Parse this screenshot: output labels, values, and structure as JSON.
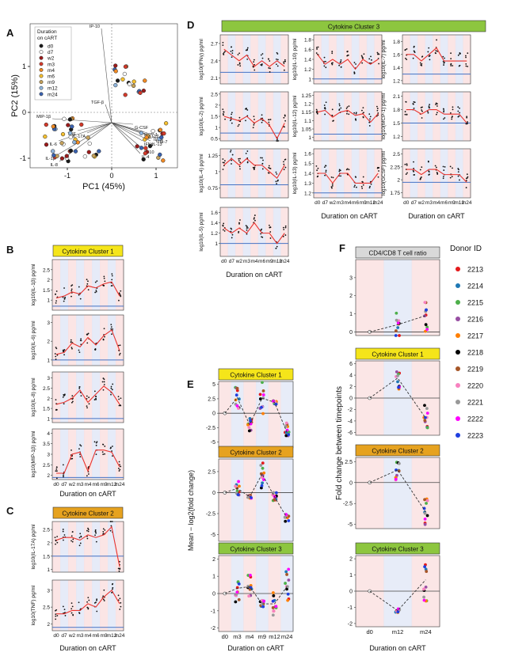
{
  "colors": {
    "median_line": "#e8332f",
    "baseline": "#4472c4",
    "zero_line": "#444444",
    "band_red": "#fadcdc",
    "band_blue": "#dde4f5",
    "cluster1": "#f5e51a",
    "cluster2": "#e6a21f",
    "cluster3": "#8dc63f",
    "header_grey": "#d9d9d9"
  },
  "panel_letters": [
    "A",
    "B",
    "C",
    "D",
    "E",
    "F"
  ],
  "x_axis_label": "Duration on cART",
  "timepoints": [
    "d0",
    "d7",
    "w2",
    "m3",
    "m4",
    "m6",
    "m9",
    "m12",
    "m24"
  ],
  "timepoints_E": [
    "d0",
    "m3",
    "m4",
    "m9",
    "m12",
    "m24"
  ],
  "timepoints_F": [
    "d0",
    "m12",
    "m24"
  ],
  "pca": {
    "xlabel": "PC1 (45%)",
    "ylabel": "PC2 (15%)",
    "xticks": [
      "-1",
      "0",
      "1"
    ],
    "yticks": [
      "1",
      "0",
      "-1"
    ],
    "legend_title": "Duration on cART",
    "legend_title_lines": [
      "Duration",
      "on cART"
    ],
    "legend_items": [
      {
        "label": "d0",
        "color": "#1a1a1a"
      },
      {
        "label": "d7",
        "color": "#ffffff"
      },
      {
        "label": "w2",
        "color": "#9b1b1b"
      },
      {
        "label": "m3",
        "color": "#d43a2a"
      },
      {
        "label": "m4",
        "color": "#f08a24"
      },
      {
        "label": "m6",
        "color": "#f5c030"
      },
      {
        "label": "m9",
        "color": "#c4a15c"
      },
      {
        "label": "m12",
        "color": "#8fb5dc"
      },
      {
        "label": "m24",
        "color": "#3a62b0"
      }
    ],
    "loadings": [
      "IP-10",
      "TGF-β",
      "G-CSF",
      "MCP-1",
      "IL-12",
      "IL-2",
      "IL-5",
      "IL-7",
      "IL-13",
      "IFNγ",
      "IL-10",
      "IL-4",
      "MIP-1β",
      "TNF",
      "IL-17A",
      "IL-6",
      "IL-1β",
      "IL-8"
    ]
  },
  "cluster_titles": {
    "c1": "Cytokine Cluster 1",
    "c2": "Cytokine Cluster 2",
    "c3": "Cytokine Cluster 3"
  },
  "chart_data": [
    {
      "panel": "B",
      "type": "line",
      "panels": [
        {
          "ylabel": "log10(IL-1β) pg/ml",
          "yticks": [
            1.0,
            1.5,
            2.0,
            2.5
          ],
          "ylim": [
            0.5,
            3.0
          ],
          "baseline": 0.7,
          "medians": [
            1.1,
            1.2,
            1.4,
            1.3,
            1.7,
            1.6,
            1.8,
            1.9,
            1.2
          ]
        },
        {
          "ylabel": "log10(IL-6) pg/ml",
          "yticks": [
            1,
            2,
            3
          ],
          "ylim": [
            0.7,
            3.4
          ],
          "baseline": 1.0,
          "medians": [
            1.3,
            1.4,
            1.9,
            1.7,
            2.2,
            1.8,
            2.3,
            2.6,
            1.5
          ]
        },
        {
          "ylabel": "log10(IL-8) pg/ml",
          "yticks": [
            1.0,
            1.5,
            2.0,
            2.5,
            3.0
          ],
          "ylim": [
            0.8,
            3.3
          ],
          "baseline": 1.0,
          "medians": [
            1.7,
            1.8,
            2.0,
            2.4,
            1.8,
            2.2,
            2.6,
            2.3,
            1.7
          ]
        },
        {
          "ylabel": "log10(MIP-1β) pg/ml",
          "yticks": [
            2.0,
            2.5,
            3.0,
            3.5,
            4.0
          ],
          "ylim": [
            1.8,
            4.2
          ],
          "baseline": 1.9,
          "medians": [
            2.1,
            2.1,
            3.0,
            3.1,
            2.2,
            3.2,
            3.2,
            3.1,
            2.4
          ]
        }
      ]
    },
    {
      "panel": "C",
      "type": "line",
      "panels": [
        {
          "ylabel": "log10(IL-17A) pg/ml",
          "yticks": [
            1.0,
            1.5,
            2.0,
            2.5
          ],
          "ylim": [
            0.9,
            2.8
          ],
          "baseline": 1.5,
          "medians": [
            2.1,
            2.2,
            2.2,
            2.1,
            2.3,
            2.2,
            2.3,
            2.6,
            1.1
          ]
        },
        {
          "ylabel": "log10(TNF) pg/ml",
          "yticks": [
            2.0,
            2.5,
            3.0
          ],
          "ylim": [
            1.8,
            3.3
          ],
          "baseline": 1.9,
          "medians": [
            2.3,
            2.3,
            2.4,
            2.4,
            2.6,
            2.5,
            2.8,
            3.0,
            2.6
          ]
        }
      ]
    },
    {
      "panel": "D",
      "type": "line",
      "panels": [
        {
          "ylabel": "log10(IFNγ) pg/ml",
          "yticks": [
            2.1,
            2.4,
            2.7
          ],
          "ylim": [
            2.0,
            2.85
          ],
          "baseline": 2.2,
          "medians": [
            2.6,
            2.5,
            2.4,
            2.5,
            2.3,
            2.4,
            2.3,
            2.4,
            2.3
          ]
        },
        {
          "ylabel": "log10(IL-10) pg/ml",
          "yticks": [
            1.0,
            1.2,
            1.4,
            1.6,
            1.8
          ],
          "ylim": [
            0.9,
            1.9
          ],
          "baseline": 1.0,
          "medians": [
            1.5,
            1.3,
            1.4,
            1.3,
            1.4,
            1.2,
            1.4,
            1.3,
            1.4
          ]
        },
        {
          "ylabel": "log10(IL-7) pg/ml",
          "yticks": [
            1.2,
            1.4,
            1.6,
            1.8
          ],
          "ylim": [
            1.15,
            1.9
          ],
          "baseline": 1.3,
          "medians": [
            1.6,
            1.6,
            1.5,
            1.6,
            1.7,
            1.5,
            1.5,
            1.5,
            1.5
          ]
        },
        {
          "ylabel": "log10(IL-2) pg/ml",
          "yticks": [
            0.5,
            1.0,
            1.5,
            2.0,
            2.5
          ],
          "ylim": [
            0.4,
            2.6
          ],
          "baseline": 0.75,
          "medians": [
            1.5,
            1.4,
            1.3,
            1.5,
            1.2,
            1.4,
            1.1,
            0.5,
            1.2
          ]
        },
        {
          "ylabel": "log10(IL-12) pg/ml",
          "yticks": [
            1.0,
            1.05,
            1.1,
            1.15,
            1.2,
            1.25
          ],
          "ylim": [
            0.98,
            1.27
          ],
          "baseline": 1.02,
          "medians": [
            1.15,
            1.16,
            1.12,
            1.15,
            1.16,
            1.13,
            1.14,
            1.09,
            1.14
          ]
        },
        {
          "ylabel": "log10(MCP-1) pg/ml",
          "yticks": [
            1.2,
            1.5,
            1.8,
            2.1
          ],
          "ylim": [
            1.1,
            2.2
          ],
          "baseline": 1.5,
          "medians": [
            1.8,
            1.8,
            1.7,
            1.8,
            1.8,
            1.7,
            1.7,
            1.7,
            1.5
          ]
        },
        {
          "ylabel": "log10(IL-4) pg/ml",
          "yticks": [
            0.75,
            1.0,
            1.25
          ],
          "ylim": [
            0.6,
            1.35
          ],
          "baseline": 0.8,
          "medians": [
            1.1,
            1.2,
            1.1,
            1.2,
            1.1,
            1.1,
            1.0,
            0.9,
            1.1
          ]
        },
        {
          "ylabel": "log10(IL-13) pg/ml",
          "yticks": [
            1.2,
            1.3,
            1.4,
            1.5,
            1.6
          ],
          "ylim": [
            1.15,
            1.65
          ],
          "baseline": 1.2,
          "medians": [
            1.4,
            1.4,
            1.3,
            1.4,
            1.4,
            1.3,
            1.3,
            1.3,
            1.4
          ]
        },
        {
          "ylabel": "log10(GCSF) pg/ml",
          "yticks": [
            1.75,
            2.0,
            2.25,
            2.5
          ],
          "ylim": [
            1.65,
            2.6
          ],
          "baseline": 1.95,
          "medians": [
            2.2,
            2.2,
            2.1,
            2.2,
            2.2,
            2.1,
            2.1,
            2.1,
            1.95
          ]
        },
        {
          "ylabel": "log10(IL-5) pg/ml",
          "yticks": [
            1.0,
            1.2,
            1.4,
            1.6
          ],
          "ylim": [
            0.75,
            1.7
          ],
          "baseline": 1.0,
          "medians": [
            1.3,
            1.2,
            1.3,
            1.2,
            1.4,
            1.2,
            1.2,
            1.0,
            1.2
          ]
        }
      ]
    },
    {
      "panel": "E",
      "type": "line",
      "ylabel": "Mean − log2(fold change)",
      "panels": [
        {
          "title": "Cytokine Cluster 1",
          "yticks": [
            5.0,
            2.5,
            0.0,
            -2.5,
            -5.0
          ],
          "ylim": [
            -6,
            5.5
          ],
          "means": [
            0,
            2.7,
            -2.0,
            2.6,
            1.9,
            -3.3
          ]
        },
        {
          "title": "Cytokine Cluster 2",
          "yticks": [
            2.5,
            0.0,
            -2.5,
            -5.0
          ],
          "ylim": [
            -5.8,
            4
          ],
          "means": [
            0,
            0.5,
            -0.5,
            2.2,
            -0.5,
            -3.0
          ]
        },
        {
          "title": "Cytokine Cluster 3",
          "yticks": [
            2,
            1,
            0,
            -1,
            -2
          ],
          "ylim": [
            -2.2,
            2.2
          ],
          "means": [
            0,
            0.3,
            0.4,
            -0.6,
            -0.6,
            0.4
          ]
        }
      ]
    },
    {
      "panel": "F",
      "type": "scatter",
      "ylabel": "Fold change between timepoints",
      "legend_title": "Donor ID",
      "donors": [
        {
          "id": "2213",
          "color": "#e41a1c"
        },
        {
          "id": "2214",
          "color": "#1f78b4"
        },
        {
          "id": "2215",
          "color": "#4daf4a"
        },
        {
          "id": "2216",
          "color": "#984ea3"
        },
        {
          "id": "2217",
          "color": "#ff7f00"
        },
        {
          "id": "2218",
          "color": "#000000"
        },
        {
          "id": "2219",
          "color": "#a65628"
        },
        {
          "id": "2220",
          "color": "#f781bf"
        },
        {
          "id": "2221",
          "color": "#999999"
        },
        {
          "id": "2222",
          "color": "#ff00ff"
        },
        {
          "id": "2223",
          "color": "#1f3fe0"
        }
      ],
      "panels": [
        {
          "title": "CD4/CD8 T cell ratio",
          "yticks": [
            3,
            2,
            1,
            0
          ],
          "ylim": [
            -0.2,
            4
          ],
          "means": [
            0,
            0.4,
            0.9
          ]
        },
        {
          "title": "Cytokine Cluster 1",
          "yticks": [
            6,
            4,
            2,
            0,
            -2,
            -4,
            -6
          ],
          "ylim": [
            -6.5,
            6.5
          ],
          "means": [
            0,
            3.5,
            -3.5
          ]
        },
        {
          "title": "Cytokine Cluster 2",
          "yticks": [
            2.5,
            0.0,
            -2.5,
            -5.0
          ],
          "ylim": [
            -5.5,
            3
          ],
          "means": [
            0,
            1.5,
            -3.5
          ]
        },
        {
          "title": "Cytokine Cluster 3",
          "yticks": [
            2,
            1,
            0,
            -1,
            -2
          ],
          "ylim": [
            -2.2,
            2.2
          ],
          "means": [
            0,
            -1.2,
            0.7
          ]
        }
      ]
    }
  ]
}
